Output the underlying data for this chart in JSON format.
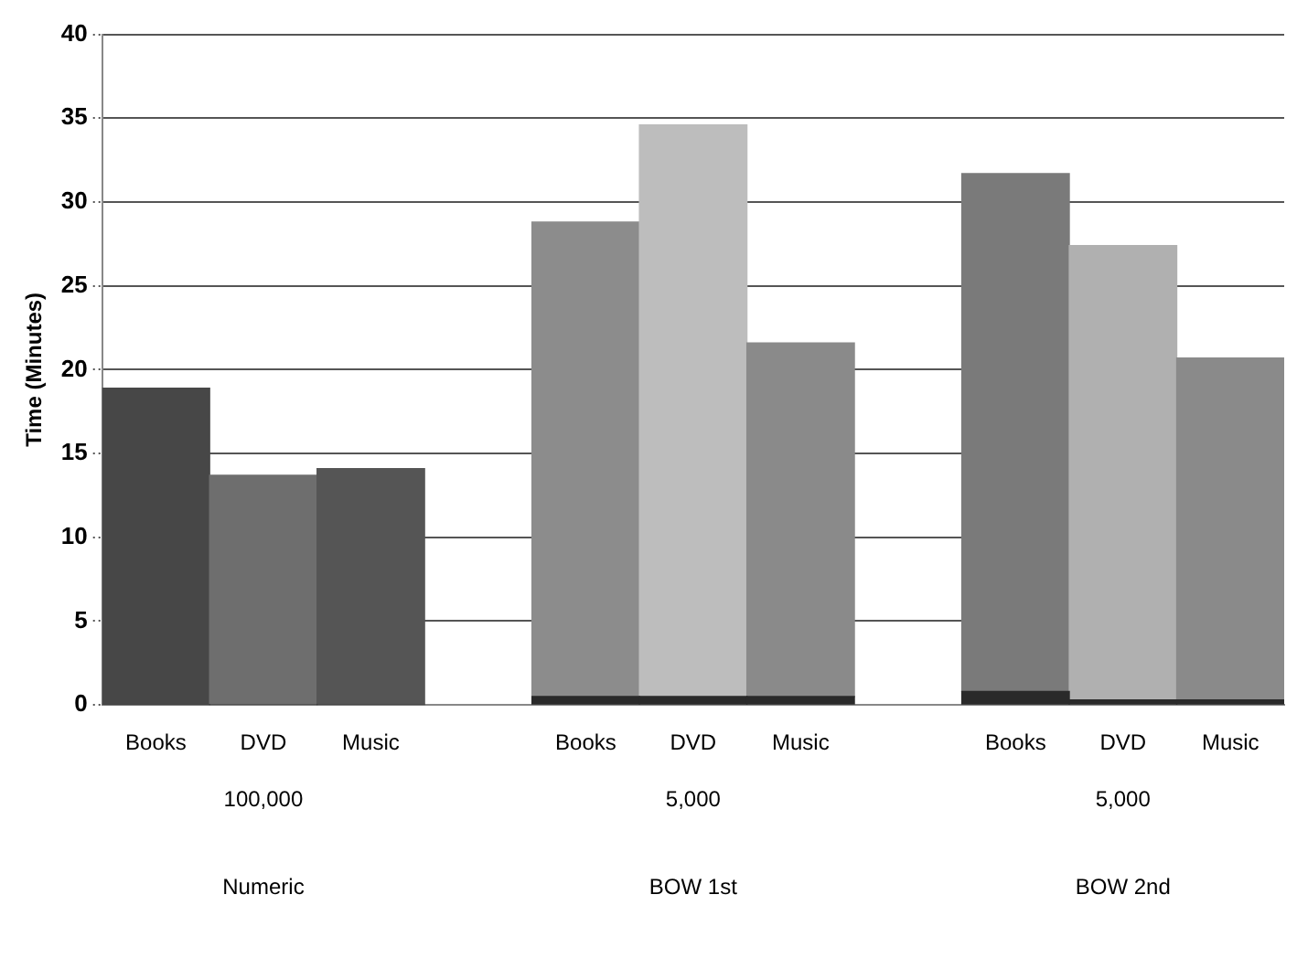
{
  "chart_data": {
    "type": "bar",
    "stacked": true,
    "ylabel": "Time (Minutes)",
    "categories": [
      "Books",
      "DVD",
      "Music",
      null,
      "Books",
      "DVD",
      "Music",
      null,
      "Books",
      "DVD",
      "Music"
    ],
    "series": [
      {
        "colors": [
          "#303030",
          "#303030",
          "#303030",
          "#303030",
          "#2a2a2a",
          "#2a2a2a",
          "#2a2a2a",
          "#303030",
          "#2a2a2a",
          "#2a2a2a",
          "#2a2a2a"
        ],
        "values": [
          0,
          0,
          0,
          null,
          0.5,
          0.5,
          0.5,
          null,
          0.8,
          0.3,
          0.3
        ]
      },
      {
        "colors": [
          "#474747",
          "#6e6e6e",
          "#555555",
          "#888888",
          "#8c8c8c",
          "#bdbdbd",
          "#8a8a8a",
          "#888888",
          "#7a7a7a",
          "#b0b0b0",
          "#8a8a8a"
        ],
        "values": [
          18.9,
          13.7,
          14.1,
          null,
          28.3,
          34.1,
          21.1,
          null,
          30.9,
          27.1,
          20.4
        ]
      }
    ],
    "ylim": [
      0,
      40
    ],
    "yticks": [
      0,
      5,
      10,
      15,
      20,
      25,
      30,
      35,
      40
    ],
    "grid": "y",
    "legend": false,
    "annotations": [
      "100,000",
      "5,000",
      "5,000",
      "Numeric",
      "BOW 1st",
      "BOW 2nd"
    ]
  }
}
